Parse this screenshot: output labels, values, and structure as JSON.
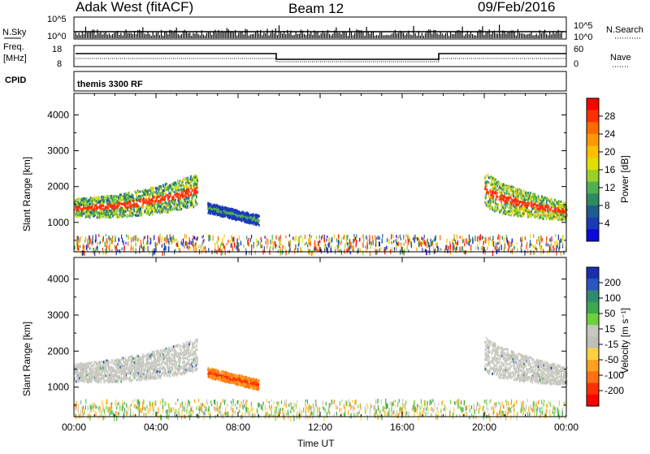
{
  "header": {
    "station": "Adak West (fitACF)",
    "beam": "Beam 12",
    "date": "09/Feb/2016"
  },
  "panels": {
    "nsky_label": "N.Sky",
    "nsky_ticks": [
      "10^5",
      "10^0"
    ],
    "nsearch_label": "N.Search",
    "nsearch_ticks": [
      "10^5",
      "10^0"
    ],
    "freq_label_1": "Freq.",
    "freq_label_2": "[MHz]",
    "freq_ticks": [
      "18",
      "8"
    ],
    "nave_label": "Nave",
    "nave_ticks": [
      "60",
      "0"
    ],
    "cpid_label": "CPID",
    "cpid_value": "themis 3300 RF"
  },
  "axes": {
    "ylabel": "Slant Range [km]",
    "xlabel": "Time UT",
    "yticks": [
      "4000",
      "3000",
      "2000",
      "1000"
    ],
    "xticks": [
      "00:00",
      "04:00",
      "08:00",
      "12:00",
      "16:00",
      "20:00",
      "00:00"
    ]
  },
  "colorbars": {
    "power": {
      "label": "Power [dB]",
      "ticks": [
        "28",
        "24",
        "20",
        "16",
        "12",
        "8",
        "4"
      ],
      "colors": [
        "#ff0000",
        "#ff3000",
        "#ff6a00",
        "#ff9800",
        "#ffbe00",
        "#e0e000",
        "#9ad02a",
        "#4fb050",
        "#2e8a60",
        "#1e5e8c",
        "#1a3ab8",
        "#0a0adc"
      ]
    },
    "velocity": {
      "label": "Velocity [m s⁻¹]",
      "ticks": [
        "200",
        "100",
        "50",
        "15",
        "-15",
        "-50",
        "-100",
        "-200"
      ],
      "colors": [
        "#1a2fb0",
        "#2a56c0",
        "#2f8a6e",
        "#3ea84f",
        "#6ed03c",
        "#c8c8c0",
        "#c0c0b8",
        "#ffd040",
        "#ffa020",
        "#ff7010",
        "#ff3000",
        "#ff0000"
      ]
    }
  },
  "chart_data": [
    {
      "type": "heatmap",
      "title": "Power",
      "xlabel": "Time UT",
      "ylabel": "Slant Range [km]",
      "xlim": [
        "00:00",
        "24:00"
      ],
      "ylim": [
        180,
        4600
      ],
      "colorbar": {
        "label": "Power [dB]",
        "range": [
          0,
          30
        ]
      },
      "features": [
        {
          "time": "00:00-06:00",
          "range_km": [
            1000,
            2400
          ],
          "power_db": 22
        },
        {
          "time": "06:30-09:00",
          "range_km": [
            900,
            1500
          ],
          "power_db": 6
        },
        {
          "time": "20:00-24:00",
          "range_km": [
            1000,
            2400
          ],
          "power_db": 24
        }
      ]
    },
    {
      "type": "heatmap",
      "title": "Velocity",
      "xlabel": "Time UT",
      "ylabel": "Slant Range [km]",
      "xlim": [
        "00:00",
        "24:00"
      ],
      "ylim": [
        180,
        4600
      ],
      "colorbar": {
        "label": "Velocity [m s⁻¹]",
        "range": [
          -200,
          200
        ]
      },
      "features": [
        {
          "time": "00:00-06:00",
          "range_km": [
            1000,
            2400
          ],
          "velocity_ms": 0
        },
        {
          "time": "06:30-09:00",
          "range_km": [
            900,
            1500
          ],
          "velocity_ms": -60
        },
        {
          "time": "20:00-24:00",
          "range_km": [
            1000,
            2400
          ],
          "velocity_ms": 0
        }
      ]
    }
  ]
}
